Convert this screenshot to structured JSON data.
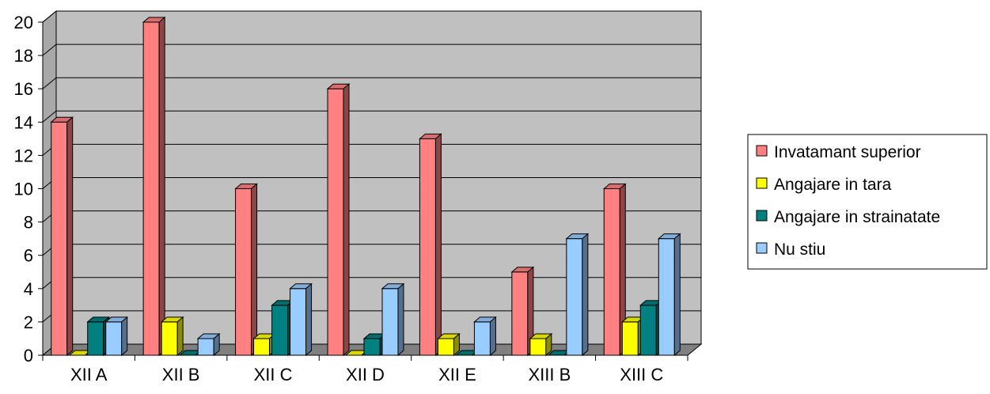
{
  "chart_data": {
    "type": "bar",
    "title": "",
    "xlabel": "",
    "ylabel": "",
    "categories": [
      "XII A",
      "XII B",
      "XII C",
      "XII D",
      "XII E",
      "XIII B",
      "XIII C"
    ],
    "series": [
      {
        "name": "Invatamant superior",
        "color": "#FF8080",
        "values": [
          14,
          20,
          10,
          16,
          13,
          5,
          10
        ]
      },
      {
        "name": "Angajare in tara",
        "color": "#FFFF00",
        "values": [
          0,
          2,
          1,
          0,
          1,
          1,
          2
        ]
      },
      {
        "name": "Angajare in strainatate",
        "color": "#008080",
        "values": [
          2,
          0,
          3,
          1,
          0,
          0,
          3
        ]
      },
      {
        "name": "Nu stiu",
        "color": "#99CCFF",
        "values": [
          2,
          1,
          4,
          4,
          2,
          7,
          7
        ]
      }
    ],
    "ylim": [
      0,
      20
    ],
    "yticks": [
      "0",
      "2",
      "4",
      "6",
      "8",
      "10",
      "12",
      "14",
      "16",
      "18",
      "20"
    ],
    "grid": true,
    "legend_position": "right",
    "plot_background": "#C0C0C0",
    "style": "3d-clustered-column"
  }
}
